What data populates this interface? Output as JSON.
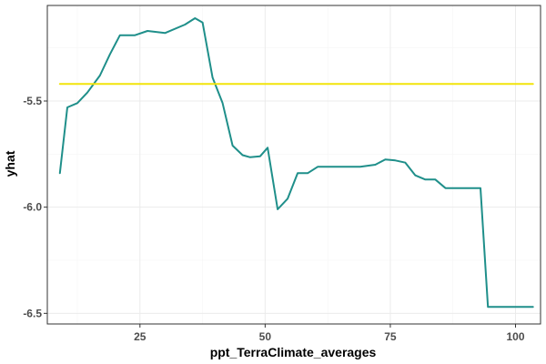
{
  "chart_data": {
    "type": "line",
    "xlabel": "ppt_TerraClimate_averages",
    "ylabel": "yhat",
    "xlim": [
      6.5,
      105
    ],
    "ylim": [
      -6.55,
      -5.05
    ],
    "x_ticks": [
      25,
      50,
      75,
      100
    ],
    "y_ticks": [
      -5.5,
      -6.0,
      -6.5
    ],
    "x_tick_labels": [
      "25",
      "50",
      "75",
      "100"
    ],
    "y_tick_labels": [
      "-5.5",
      "-6.0",
      "-6.5"
    ],
    "grid": true,
    "series": [
      {
        "color": "#1f8f8a",
        "x": [
          9,
          10.5,
          12.5,
          14.5,
          17,
          19,
          21,
          24,
          26.5,
          30,
          34,
          36,
          37.5,
          39.5,
          41.5,
          43.5,
          45.5,
          47,
          49,
          50.5,
          52.5,
          54.5,
          56.5,
          58.5,
          60.5,
          63,
          66,
          69,
          72,
          74,
          76,
          78,
          80,
          82,
          84,
          86,
          88,
          90,
          93,
          94.5,
          96,
          103.5
        ],
        "y": [
          -5.84,
          -5.53,
          -5.51,
          -5.46,
          -5.38,
          -5.28,
          -5.19,
          -5.19,
          -5.17,
          -5.18,
          -5.14,
          -5.11,
          -5.13,
          -5.39,
          -5.51,
          -5.71,
          -5.755,
          -5.765,
          -5.76,
          -5.72,
          -6.01,
          -5.96,
          -5.84,
          -5.84,
          -5.81,
          -5.81,
          -5.81,
          -5.81,
          -5.8,
          -5.775,
          -5.78,
          -5.79,
          -5.85,
          -5.87,
          -5.87,
          -5.91,
          -5.91,
          -5.91,
          -5.91,
          -6.47,
          -6.47,
          -6.47
        ]
      },
      {
        "color": "#f2e40a",
        "x": [
          9,
          103.5
        ],
        "y": [
          -5.42,
          -5.42
        ]
      }
    ]
  }
}
